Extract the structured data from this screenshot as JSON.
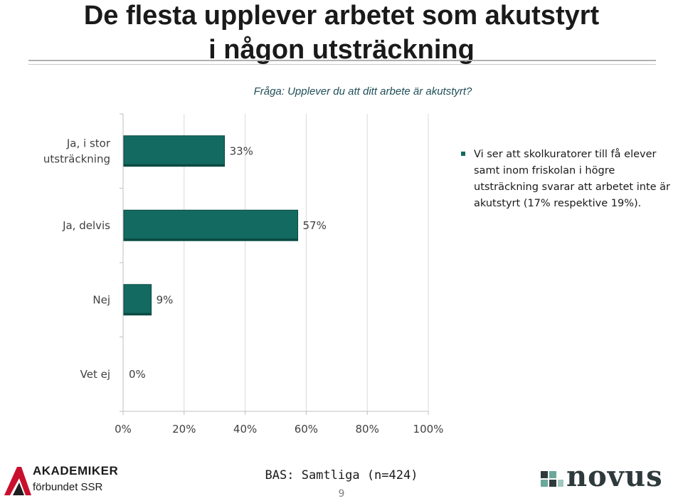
{
  "title": {
    "line1": "De flesta upplever arbetet som akutstyrt",
    "line2": "i någon utsträckning"
  },
  "subtitle": "Fråga: Upplever du att ditt arbete är akutstyrt?",
  "note": "Vi ser att skolkuratorer till få elever samt inom friskolan i högre utsträckning svarar att arbetet inte är akutstyrt (17% respektive 19%).",
  "footer": {
    "base": "BAS: Samtliga (n=424)",
    "page": "9"
  },
  "logos": {
    "left_line1": "AKADEMIKER",
    "left_line2": "förbundet SSR",
    "right": "novus"
  },
  "colors": {
    "bar": "#136a60",
    "bar_edge": "#0b4a43",
    "accent_red": "#c8102e",
    "novus_green": "#6aa89a"
  },
  "chart_data": {
    "type": "bar",
    "orientation": "horizontal",
    "categories": [
      "Ja, i stor utsträckning",
      "Ja, delvis",
      "Nej",
      "Vet ej"
    ],
    "category_lines": [
      [
        "Ja, i stor",
        "utsträckning"
      ],
      [
        "Ja, delvis"
      ],
      [
        "Nej"
      ],
      [
        "Vet ej"
      ]
    ],
    "values": [
      33,
      57,
      9,
      0
    ],
    "data_labels": [
      "33%",
      "57%",
      "9%",
      "0%"
    ],
    "xlim": [
      0,
      100
    ],
    "xticks": [
      0,
      20,
      40,
      60,
      80,
      100
    ],
    "xtick_labels": [
      "0%",
      "20%",
      "40%",
      "60%",
      "80%",
      "100%"
    ],
    "grid": true
  }
}
